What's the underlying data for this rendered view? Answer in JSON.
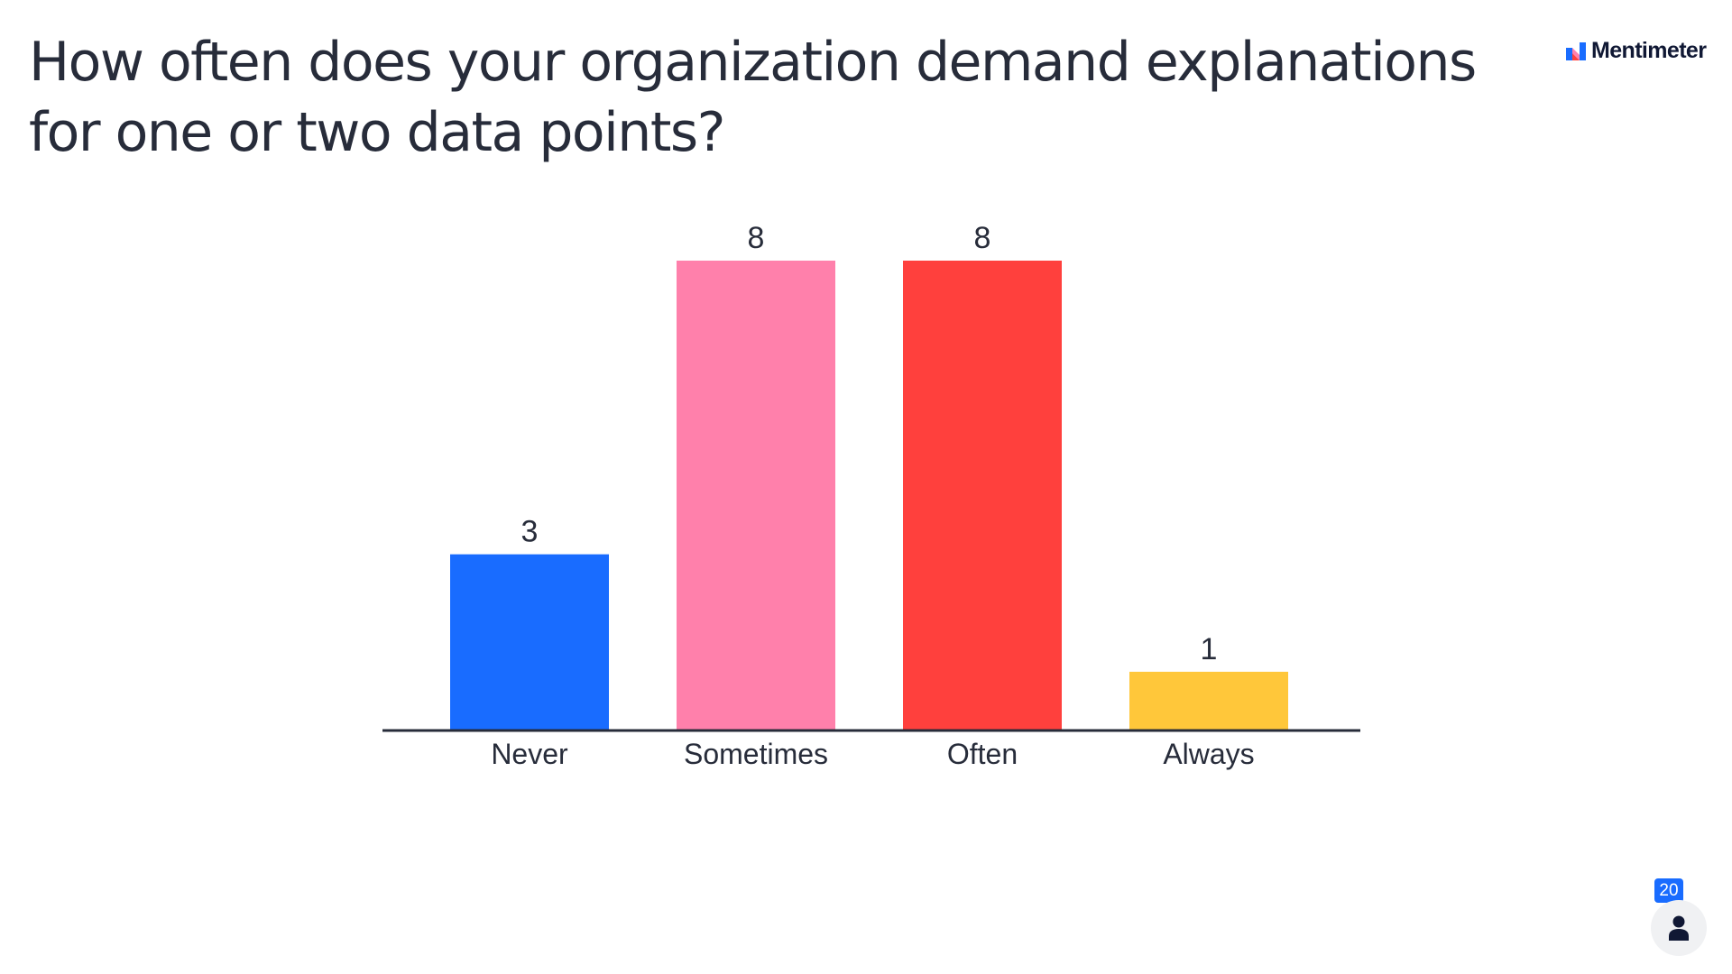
{
  "slide": {
    "title": "How often does your organization demand explanations for one or two data points?"
  },
  "brand": {
    "name": "Mentimeter",
    "logo_icon": "mentimeter-logo-icon",
    "logo_colors": [
      "#196cff",
      "#ff80ab",
      "#ff403d"
    ]
  },
  "participants": {
    "count": "20",
    "icon": "person-icon",
    "badge_color": "#196cff"
  },
  "chart_data": {
    "type": "bar",
    "categories": [
      "Never",
      "Sometimes",
      "Often",
      "Always"
    ],
    "values": [
      3,
      8,
      8,
      1
    ],
    "value_labels": [
      "3",
      "8",
      "8",
      "1"
    ],
    "colors": [
      "#196cff",
      "#ff80ab",
      "#ff403d",
      "#ffc73a"
    ],
    "ylim": [
      0,
      8
    ],
    "grid": false,
    "legend": "none"
  }
}
